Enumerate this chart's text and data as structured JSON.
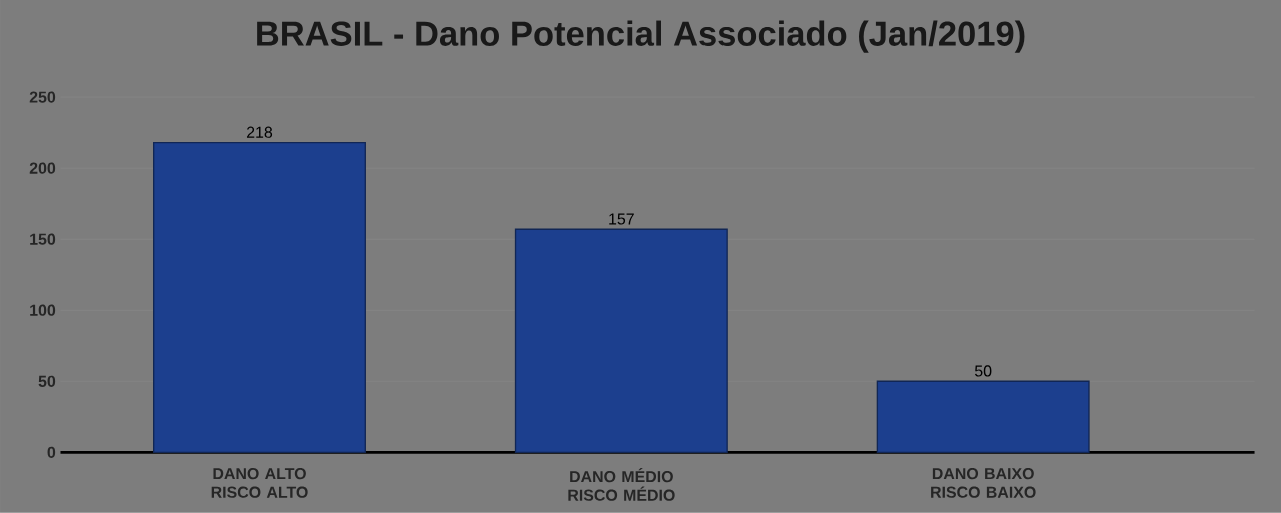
{
  "chart_data": {
    "type": "bar",
    "title": "BRASIL - Dano Potencial Associado (Jan/2019)",
    "categories": [
      "DANO ALTO RISCO ALTO",
      "DANO MÉDIO RISCO MÉDIO",
      "DANO BAIXO RISCO BAIXO"
    ],
    "values": [
      218,
      157,
      50
    ],
    "color": "#1c3f8e",
    "ylim": [
      0,
      250
    ],
    "yticks": [
      0,
      50,
      100,
      150,
      200,
      250
    ],
    "grid": "y",
    "data_labels": true
  }
}
